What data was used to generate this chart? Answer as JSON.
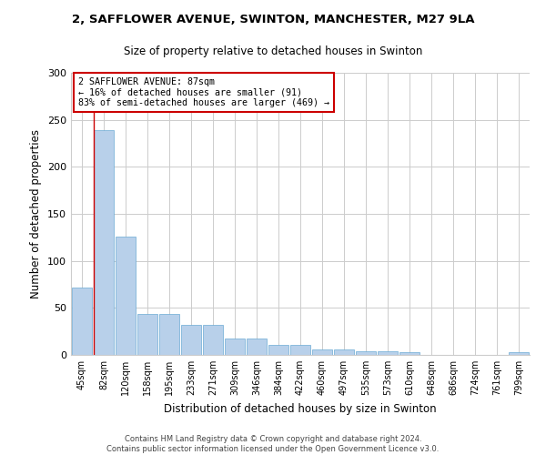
{
  "title1": "2, SAFFLOWER AVENUE, SWINTON, MANCHESTER, M27 9LA",
  "title2": "Size of property relative to detached houses in Swinton",
  "xlabel": "Distribution of detached houses by size in Swinton",
  "ylabel": "Number of detached properties",
  "categories": [
    "45sqm",
    "82sqm",
    "120sqm",
    "158sqm",
    "195sqm",
    "233sqm",
    "271sqm",
    "309sqm",
    "346sqm",
    "384sqm",
    "422sqm",
    "460sqm",
    "497sqm",
    "535sqm",
    "573sqm",
    "610sqm",
    "648sqm",
    "686sqm",
    "724sqm",
    "761sqm",
    "799sqm"
  ],
  "values": [
    72,
    239,
    126,
    44,
    44,
    32,
    32,
    17,
    17,
    11,
    11,
    6,
    6,
    4,
    4,
    3,
    0,
    0,
    0,
    0,
    3
  ],
  "bar_color": "#b8d0ea",
  "bar_edge_color": "#6aaad4",
  "highlight_line_color": "#cc0000",
  "annotation_line1": "2 SAFFLOWER AVENUE: 87sqm",
  "annotation_line2": "← 16% of detached houses are smaller (91)",
  "annotation_line3": "83% of semi-detached houses are larger (469) →",
  "annotation_box_color": "#ffffff",
  "annotation_box_edge_color": "#cc0000",
  "ylim": [
    0,
    300
  ],
  "yticks": [
    0,
    50,
    100,
    150,
    200,
    250,
    300
  ],
  "footer": "Contains HM Land Registry data © Crown copyright and database right 2024.\nContains public sector information licensed under the Open Government Licence v3.0.",
  "bg_color": "#ffffff",
  "grid_color": "#cccccc"
}
